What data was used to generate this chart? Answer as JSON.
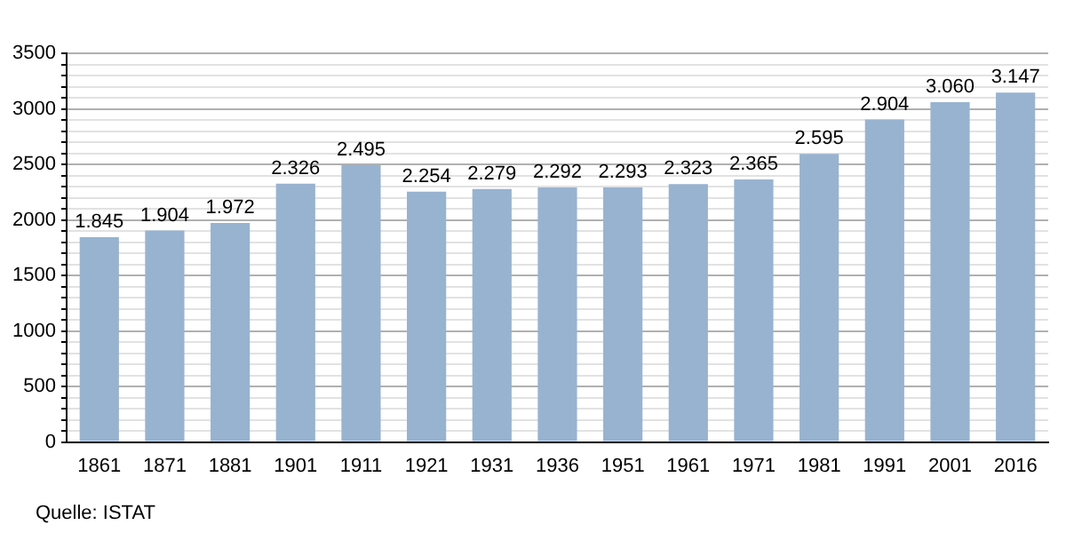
{
  "chart_data": {
    "type": "bar",
    "categories": [
      "1861",
      "1871",
      "1881",
      "1901",
      "1911",
      "1921",
      "1931",
      "1936",
      "1951",
      "1961",
      "1971",
      "1981",
      "1991",
      "2001",
      "2016"
    ],
    "values": [
      1845,
      1904,
      1972,
      2326,
      2495,
      2254,
      2279,
      2292,
      2293,
      2323,
      2365,
      2595,
      2904,
      3060,
      3147
    ],
    "value_labels": [
      "1.845",
      "1.904",
      "1.972",
      "2.326",
      "2.495",
      "2.254",
      "2.279",
      "2.292",
      "2.293",
      "2.323",
      "2.365",
      "2.595",
      "2.904",
      "3.060",
      "3.147"
    ],
    "color": "#98b3d0",
    "ylim": [
      0,
      3500
    ],
    "yticks": [
      0,
      {
        "value": 100,
        "label": null
      },
      {
        "value": 200,
        "label": null
      },
      {
        "value": 300,
        "label": null
      },
      {
        "value": 400,
        "label": null
      },
      500,
      {
        "value": 600,
        "label": null
      },
      {
        "value": 700,
        "label": null
      },
      {
        "value": 800,
        "label": null
      },
      {
        "value": 900,
        "label": null
      },
      1000,
      {
        "value": 1100,
        "label": null
      },
      {
        "value": 1200,
        "label": null
      },
      {
        "value": 1300,
        "label": null
      },
      {
        "value": 1400,
        "label": null
      },
      1500,
      {
        "value": 1600,
        "label": null
      },
      {
        "value": 1700,
        "label": null
      },
      {
        "value": 1800,
        "label": null
      },
      {
        "value": 1900,
        "label": null
      },
      2000,
      {
        "value": 2100,
        "label": null
      },
      {
        "value": 2200,
        "label": null
      },
      {
        "value": 2300,
        "label": null
      },
      {
        "value": 2400,
        "label": null
      },
      2500,
      {
        "value": 2600,
        "label": null
      },
      {
        "value": 2700,
        "label": null
      },
      {
        "value": 2800,
        "label": null
      },
      {
        "value": 2900,
        "label": null
      },
      3000,
      {
        "value": 3100,
        "label": null
      },
      {
        "value": 3200,
        "label": null
      },
      {
        "value": 3300,
        "label": null
      },
      {
        "value": 3400,
        "label": null
      },
      3500
    ],
    "grid": "y",
    "legend": false,
    "annotations": [
      "Quelle: ISTAT"
    ]
  }
}
